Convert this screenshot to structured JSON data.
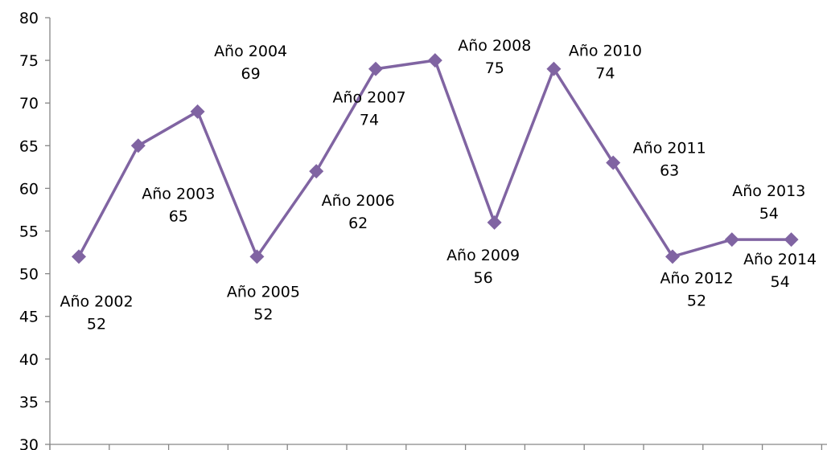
{
  "chart_data": {
    "type": "line",
    "title": "",
    "xlabel": "",
    "ylabel": "",
    "ylim": [
      30,
      80
    ],
    "yticks": [
      "30",
      "35",
      "40",
      "45",
      "50",
      "55",
      "60",
      "65",
      "70",
      "75",
      "80"
    ],
    "grid": false,
    "legend": "none",
    "line_color": "#8064A2",
    "points": [
      {
        "label": "Año 2002",
        "value": 52
      },
      {
        "label": "Año 2003",
        "value": 65
      },
      {
        "label": "Año 2004",
        "value": 69
      },
      {
        "label": "Año 2005",
        "value": 52
      },
      {
        "label": "Año 2006",
        "value": 62
      },
      {
        "label": "Año 2007",
        "value": 74
      },
      {
        "label": "Año 2008",
        "value": 75
      },
      {
        "label": "Año 2009",
        "value": 56
      },
      {
        "label": "Año 2010",
        "value": 74
      },
      {
        "label": "Año 2011",
        "value": 63
      },
      {
        "label": "Año 2012",
        "value": 52
      },
      {
        "label": "Año 2013",
        "value": 54
      },
      {
        "label": "Año 2014",
        "value": 54
      }
    ]
  }
}
